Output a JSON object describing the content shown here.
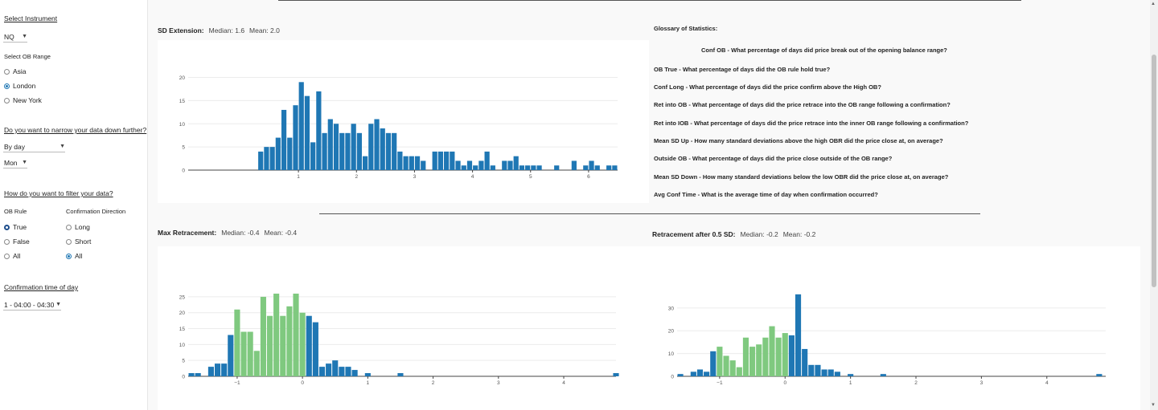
{
  "sidebar": {
    "instrument_heading": "Select Instrument",
    "instrument_value": "NQ",
    "ob_range_label": "Select OB Range",
    "ob_range_options": [
      {
        "label": "Asia",
        "selected": false
      },
      {
        "label": "London",
        "selected": true
      },
      {
        "label": "New York",
        "selected": false
      }
    ],
    "narrow_heading": "Do you want to narrow your data down further?",
    "narrow_by_value": "By day",
    "day_value": "Mon",
    "filter_heading": "How do you want to filter your data?",
    "ob_rule_label": "OB Rule",
    "ob_rule_options": [
      {
        "label": "True",
        "selected": true
      },
      {
        "label": "False",
        "selected": false
      },
      {
        "label": "All",
        "selected": false
      }
    ],
    "conf_dir_label": "Confirmation Direction",
    "conf_dir_options": [
      {
        "label": "Long",
        "selected": false
      },
      {
        "label": "Short",
        "selected": false
      },
      {
        "label": "All",
        "selected": true
      }
    ],
    "conf_time_heading": "Confirmation time of day",
    "conf_time_value": "1 - 04:00 - 04:30"
  },
  "sd_extension": {
    "title": "SD Extension:",
    "median": "Median: 1.6",
    "mean": "Mean: 2.0"
  },
  "max_retracement": {
    "title": "Max Retracement:",
    "median": "Median: -0.4",
    "mean": "Mean: -0.4"
  },
  "retracement_05": {
    "title": "Retracement after 0.5 SD:",
    "median": "Median: -0.2",
    "mean": "Mean: -0.2"
  },
  "glossary": {
    "title": "Glossary of Statistics:",
    "items": [
      "Conf OB - What percentage of days did price break out of the opening balance range?",
      "OB True - What percentage of days did the OB rule hold true?",
      "Conf Long - What percentage of days did the price confirm above the High OB?",
      "Ret into OB - What percentage of days did the price retrace into the OB range following a confirmation?",
      "Ret into IOB - What percentage of days did the price retrace into the inner OB range following a confirmation?",
      "Mean SD Up - How many standard deviations above the high OBR did the price close at, on average?",
      "Outside OB - What percentage of days did the price close outside of the OB range?",
      "Mean SD Down - How many standard deviations below the low OBR did the price close at, on average?",
      "Avg Conf Time - What is the average time of day when confirmation occurred?"
    ]
  },
  "colors": {
    "blue": "#1f77b4",
    "green": "#7fc97f",
    "grid": "#ececec"
  },
  "chart_data": [
    {
      "type": "bar",
      "name": "sd-extension-histogram",
      "xlim": [
        -0.9,
        6.5
      ],
      "ylim": [
        0,
        22
      ],
      "xticks": [
        1,
        2,
        3,
        4,
        5,
        6
      ],
      "yticks": [
        0,
        5,
        10,
        15,
        20
      ],
      "bin_start": 0.3,
      "bin_width": 0.1,
      "values": [
        4,
        5,
        5,
        7,
        13,
        7,
        14,
        19,
        16,
        6,
        17,
        8,
        11,
        10,
        8,
        8,
        10,
        8,
        3,
        10,
        11,
        9,
        8,
        8,
        4,
        3,
        3,
        3,
        2,
        0,
        4,
        4,
        4,
        4,
        2,
        1,
        2,
        1,
        2,
        4,
        1,
        0,
        2,
        2,
        3,
        1,
        1,
        1,
        1,
        0,
        0,
        1,
        0,
        0,
        2,
        0,
        1,
        2,
        1,
        0,
        1,
        1
      ],
      "colors": []
    },
    {
      "type": "bar",
      "name": "max-retracement-histogram",
      "xlim": [
        -1.75,
        4.8
      ],
      "ylim": [
        0,
        27
      ],
      "xticks": [
        -1,
        0,
        1,
        2,
        3,
        4
      ],
      "yticks": [
        0,
        5,
        10,
        15,
        20,
        25
      ],
      "bin_start": -1.75,
      "bin_width": 0.1,
      "values": [
        1,
        1,
        0,
        3,
        4,
        4,
        13,
        21,
        14,
        14,
        8,
        25,
        19,
        26,
        19,
        22,
        26,
        20,
        19,
        17,
        3,
        4,
        5,
        3,
        3,
        2,
        0,
        1,
        0,
        0,
        0,
        0,
        1,
        0,
        0,
        0,
        0,
        0,
        0,
        0,
        0,
        0,
        0,
        0,
        0,
        0,
        0,
        0,
        0,
        0,
        0,
        0,
        0,
        0,
        0,
        0,
        0,
        0,
        0,
        0,
        0,
        0,
        0,
        0,
        0,
        1
      ],
      "colors": [
        "b",
        "b",
        "b",
        "b",
        "b",
        "b",
        "b",
        "g",
        "g",
        "g",
        "g",
        "g",
        "g",
        "g",
        "g",
        "g",
        "g",
        "g",
        "b",
        "b",
        "b",
        "b",
        "b",
        "b",
        "b",
        "b",
        "b",
        "b",
        "b",
        "b",
        "b",
        "b",
        "b",
        "b",
        "b",
        "b",
        "b",
        "b",
        "b",
        "b",
        "b",
        "b",
        "b",
        "b",
        "b",
        "b",
        "b",
        "b",
        "b",
        "b",
        "b",
        "b",
        "b",
        "b",
        "b",
        "b",
        "b",
        "b",
        "b",
        "b",
        "b",
        "b",
        "b",
        "b",
        "b",
        "b"
      ]
    },
    {
      "type": "bar",
      "name": "retracement-05-histogram",
      "xlim": [
        -1.65,
        4.9
      ],
      "ylim": [
        0,
        37
      ],
      "xticks": [
        -1,
        0,
        1,
        2,
        3,
        4
      ],
      "yticks": [
        0,
        10,
        20,
        30
      ],
      "bin_start": -1.65,
      "bin_width": 0.1,
      "values": [
        1,
        0,
        2,
        3,
        2,
        11,
        13,
        9,
        7,
        4,
        17,
        13,
        14,
        17,
        22,
        17,
        19,
        18,
        36,
        12,
        5,
        5,
        3,
        3,
        2,
        0,
        1,
        0,
        0,
        0,
        0,
        1,
        0,
        0,
        0,
        0,
        0,
        0,
        0,
        0,
        0,
        0,
        0,
        0,
        0,
        0,
        0,
        0,
        0,
        0,
        0,
        0,
        0,
        0,
        0,
        0,
        0,
        0,
        0,
        0,
        0,
        0,
        0,
        0,
        1
      ],
      "colors": [
        "b",
        "b",
        "b",
        "b",
        "b",
        "b",
        "g",
        "g",
        "g",
        "g",
        "g",
        "g",
        "g",
        "g",
        "g",
        "g",
        "g",
        "b",
        "b",
        "b",
        "b",
        "b",
        "b",
        "b",
        "b",
        "b",
        "b",
        "b",
        "b",
        "b",
        "b",
        "b",
        "b",
        "b",
        "b",
        "b",
        "b",
        "b",
        "b",
        "b",
        "b",
        "b",
        "b",
        "b",
        "b",
        "b",
        "b",
        "b",
        "b",
        "b",
        "b",
        "b",
        "b",
        "b",
        "b",
        "b",
        "b",
        "b",
        "b",
        "b",
        "b",
        "b",
        "b",
        "b",
        "b"
      ]
    }
  ]
}
